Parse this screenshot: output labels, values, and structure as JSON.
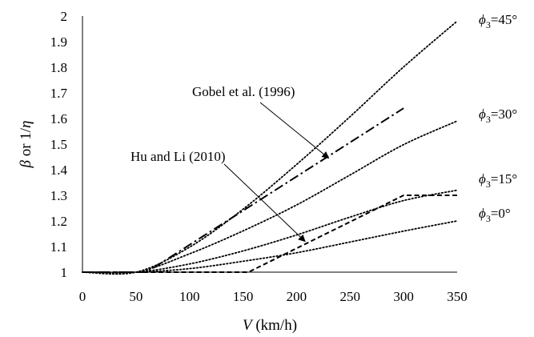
{
  "chart_data": {
    "type": "line",
    "title": "",
    "xlabel": {
      "symbol": "V",
      "unit": " (km/h)"
    },
    "ylabel": {
      "beta": "β",
      "mid": " or 1/",
      "eta": "η"
    },
    "xlim": [
      0,
      350
    ],
    "ylim": [
      1,
      2
    ],
    "xticks": [
      "0",
      "50",
      "100",
      "150",
      "200",
      "250",
      "300",
      "350"
    ],
    "yticks": [
      "1",
      "1.1",
      "1.2",
      "1.3",
      "1.4",
      "1.5",
      "1.6",
      "1.7",
      "1.8",
      "1.9",
      "2"
    ],
    "grid": false,
    "series": [
      {
        "name": "=0°",
        "style": "dotted",
        "points": [
          [
            0,
            1
          ],
          [
            50,
            1
          ],
          [
            100,
            1.0138
          ],
          [
            150,
            1.0426
          ],
          [
            200,
            1.0758
          ],
          [
            250,
            1.1177
          ],
          [
            300,
            1.1602
          ],
          [
            350,
            1.2
          ]
        ]
      },
      {
        "name": "=15°",
        "style": "dotted",
        "points": [
          [
            0,
            1
          ],
          [
            50,
            1
          ],
          [
            100,
            1.0321
          ],
          [
            150,
            1.0829
          ],
          [
            200,
            1.1452
          ],
          [
            250,
            1.215
          ],
          [
            300,
            1.2795
          ],
          [
            350,
            1.32
          ]
        ]
      },
      {
        "name": "=30°",
        "style": "dotted",
        "points": [
          [
            0,
            1
          ],
          [
            50,
            1
          ],
          [
            100,
            1.0716
          ],
          [
            150,
            1.1611
          ],
          [
            200,
            1.2623
          ],
          [
            250,
            1.3795
          ],
          [
            300,
            1.4979
          ],
          [
            350,
            1.59
          ]
        ]
      },
      {
        "name": "=45°",
        "style": "dotted",
        "points": [
          [
            0,
            1
          ],
          [
            50,
            1
          ],
          [
            100,
            1.0977
          ],
          [
            150,
            1.2458
          ],
          [
            200,
            1.4204
          ],
          [
            250,
            1.6073
          ],
          [
            300,
            1.8012
          ],
          [
            350,
            1.98
          ]
        ]
      },
      {
        "style": "dashdot",
        "points": [
          [
            0,
            1
          ],
          [
            60,
            1
          ],
          [
            300,
            1.64
          ]
        ]
      },
      {
        "style": "dashed",
        "points": [
          [
            0,
            1
          ],
          [
            155,
            1
          ],
          [
            300,
            1.3
          ],
          [
            350,
            1.3
          ]
        ]
      }
    ],
    "series_labels": {
      "phi": "ϕ",
      "sub": "3"
    },
    "annotations": [
      {
        "text": "Gobel et al. (1996)",
        "arrow_to": [
          230,
          1.445
        ]
      },
      {
        "text": "Hu and Li (2010)",
        "arrow_to": [
          208,
          1.12
        ]
      }
    ]
  }
}
